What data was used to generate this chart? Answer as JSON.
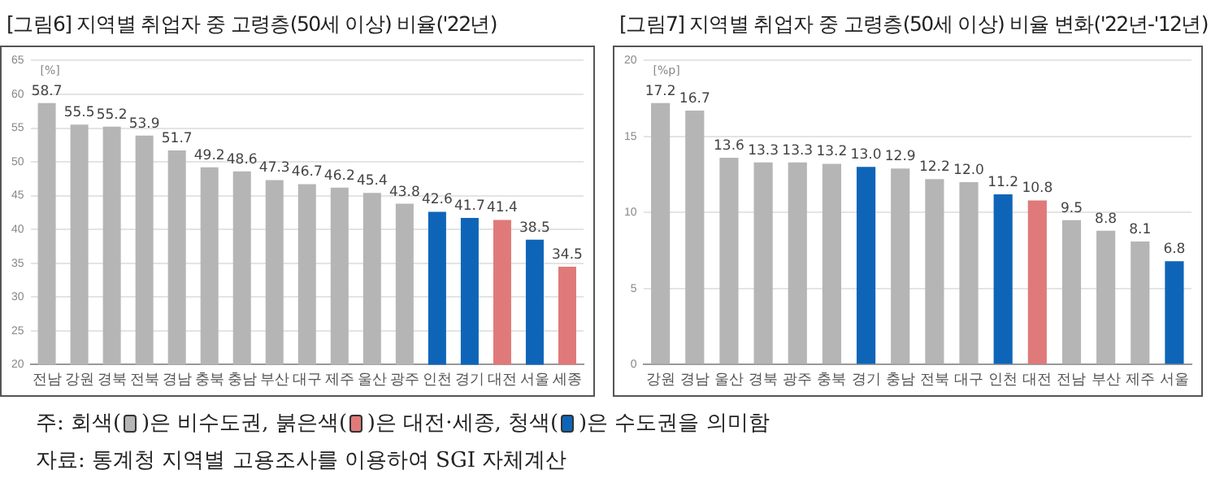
{
  "chart_data": [
    {
      "type": "bar",
      "title": "[그림6] 지역별 취업자 중 고령층(50세 이상) 비율('22년)",
      "categories": [
        "전남",
        "강원",
        "경북",
        "전북",
        "경남",
        "충북",
        "충남",
        "부산",
        "대구",
        "제주",
        "울산",
        "광주",
        "인천",
        "경기",
        "대전",
        "서울",
        "세종"
      ],
      "values": [
        58.7,
        55.5,
        55.2,
        53.9,
        51.7,
        49.2,
        48.6,
        47.3,
        46.7,
        46.2,
        45.4,
        43.8,
        42.6,
        41.7,
        41.4,
        38.5,
        34.5
      ],
      "colors": [
        "#b5b5b5",
        "#b5b5b5",
        "#b5b5b5",
        "#b5b5b5",
        "#b5b5b5",
        "#b5b5b5",
        "#b5b5b5",
        "#b5b5b5",
        "#b5b5b5",
        "#b5b5b5",
        "#b5b5b5",
        "#b5b5b5",
        "#0e65b8",
        "#0e65b8",
        "#e07a7a",
        "#0e65b8",
        "#e07a7a"
      ],
      "ylim": [
        20,
        65
      ],
      "yticks": [
        20,
        25,
        30,
        35,
        40,
        45,
        50,
        55,
        60,
        65
      ],
      "grid": "y",
      "data_labels": true,
      "annotations": [
        "[%]",
        "주: 회색(   )은 비수도권, 붉은색(   )은 대전·세종, 청색(   )은 수도권을 의미함",
        "자료: 통계청 지역별 고용조사를 이용하여 SGI 자체계산"
      ]
    },
    {
      "type": "bar",
      "title": "[그림7] 지역별 취업자 중 고령층(50세 이상) 비율 변화('22년-'12년)",
      "categories": [
        "강원",
        "경남",
        "울산",
        "경북",
        "광주",
        "충북",
        "경기",
        "충남",
        "전북",
        "대구",
        "인천",
        "대전",
        "전남",
        "부산",
        "제주",
        "서울"
      ],
      "values": [
        17.2,
        16.7,
        13.6,
        13.3,
        13.3,
        13.2,
        13.0,
        12.9,
        12.2,
        12.0,
        11.2,
        10.8,
        9.5,
        8.8,
        8.1,
        6.8
      ],
      "value_labels": [
        "17.2",
        "16.7",
        "13.6",
        "13.3",
        "13.3",
        "13.2",
        "13.0",
        "12.9",
        "12.2",
        "12.0",
        "11.2",
        "10.8",
        "9.5",
        "8.8",
        "8.1",
        "6.8"
      ],
      "colors": [
        "#b5b5b5",
        "#b5b5b5",
        "#b5b5b5",
        "#b5b5b5",
        "#b5b5b5",
        "#b5b5b5",
        "#0e65b8",
        "#b5b5b5",
        "#b5b5b5",
        "#b5b5b5",
        "#0e65b8",
        "#e07a7a",
        "#b5b5b5",
        "#b5b5b5",
        "#b5b5b5",
        "#0e65b8"
      ],
      "ylim": [
        0,
        20
      ],
      "yticks": [
        0,
        5,
        10,
        15,
        20
      ],
      "grid": "y",
      "annotations": [
        "[%p]"
      ]
    }
  ]
}
